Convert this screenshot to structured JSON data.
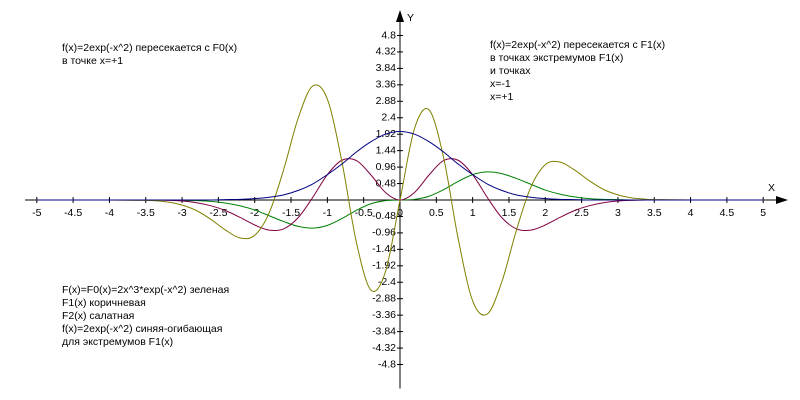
{
  "chart_data": {
    "type": "line",
    "x_label": "X",
    "y_label": "Y",
    "annotations": [
      [
        "f(x)=2exp(-x^2) пересекается с F0(x)",
        "в точке x=+1"
      ],
      [
        "f(x)=2exp(-x^2) пересекается с F1(x)",
        "в точках экстремумов F1(x)",
        "и точках",
        "x=-1",
        "x=+1"
      ],
      [
        "F(x)=F0(x)=2x^3*exp(-x^2)  зеленая",
        "F1(x)  коричневая",
        "F2(x)  салатная",
        "f(x)=2exp(-x^2)  синяя-огибающая",
        "для экстремумов F1(x)"
      ]
    ],
    "xlim": [
      -5.3,
      5.3
    ],
    "ylim": [
      -5.5,
      5.5
    ],
    "xticks": [
      -5,
      -4.5,
      -4,
      -3.5,
      -3,
      -2.5,
      -2,
      -1.5,
      -1,
      -0.5,
      0,
      0.5,
      1,
      1.5,
      2,
      2.5,
      3,
      3.5,
      4,
      4.5,
      5
    ],
    "yticks": [
      -4.8,
      -4.32,
      -3.84,
      -3.36,
      -2.88,
      -2.4,
      -1.92,
      -1.44,
      -0.96,
      -0.48,
      0.48,
      0.96,
      1.44,
      1.92,
      2.4,
      2.88,
      3.36,
      3.84,
      4.32,
      4.8
    ],
    "x": [
      -5,
      -4.5,
      -4,
      -3.6,
      -3.4,
      -3.2,
      -3,
      -2.8,
      -2.6,
      -2.4,
      -2.2,
      -2,
      -1.8,
      -1.6,
      -1.4,
      -1.2,
      -1,
      -0.8,
      -0.6,
      -0.4,
      -0.2,
      0,
      0.2,
      0.4,
      0.6,
      0.8,
      1,
      1.2,
      1.4,
      1.6,
      1.8,
      2,
      2.2,
      2.4,
      2.6,
      2.8,
      3,
      3.2,
      3.4,
      3.6,
      4,
      4.5,
      5
    ],
    "series": [
      {
        "color": "#008000",
        "values": [
          0,
          0,
          0,
          0,
          0,
          0,
          -0.01,
          -0.02,
          -0.04,
          -0.09,
          -0.17,
          -0.29,
          -0.46,
          -0.63,
          -0.77,
          -0.82,
          -0.74,
          -0.54,
          -0.3,
          -0.11,
          -0.02,
          0,
          0.02,
          0.11,
          0.3,
          0.54,
          0.74,
          0.82,
          0.77,
          0.63,
          0.46,
          0.29,
          0.17,
          0.09,
          0.04,
          0.02,
          0.01,
          0,
          0,
          0,
          0,
          0,
          0
        ]
      },
      {
        "color": "#800040",
        "values": [
          0,
          0,
          0,
          0,
          0,
          -0.01,
          -0.03,
          -0.08,
          -0.17,
          -0.31,
          -0.51,
          -0.73,
          -0.88,
          -0.84,
          -0.51,
          0.08,
          0.74,
          1.16,
          1.15,
          0.73,
          0.22,
          0,
          0.22,
          0.73,
          1.15,
          1.16,
          0.74,
          0.08,
          -0.51,
          -0.84,
          -0.88,
          -0.73,
          -0.51,
          -0.31,
          -0.17,
          -0.08,
          -0.03,
          -0.01,
          0,
          0,
          0,
          0,
          0
        ]
      },
      {
        "color": "#808000",
        "values": [
          0,
          0,
          0,
          -0.01,
          -0.02,
          -0.06,
          -0.15,
          -0.31,
          -0.57,
          -0.88,
          -1.11,
          -1.03,
          -0.37,
          0.9,
          2.4,
          3.33,
          2.94,
          1.12,
          -1.24,
          -2.63,
          -2.09,
          0,
          2.09,
          2.63,
          1.24,
          -1.12,
          -2.94,
          -3.33,
          -2.4,
          -0.9,
          0.37,
          1.03,
          1.11,
          0.88,
          0.57,
          0.31,
          0.15,
          0.06,
          0.02,
          0.01,
          0,
          0,
          0
        ]
      },
      {
        "color": "#000080",
        "values": [
          0,
          0,
          0,
          0,
          0,
          0,
          0,
          0,
          0,
          0.01,
          0.02,
          0.04,
          0.08,
          0.15,
          0.28,
          0.47,
          0.74,
          1.05,
          1.4,
          1.7,
          1.92,
          2,
          1.92,
          1.7,
          1.4,
          1.05,
          0.74,
          0.47,
          0.28,
          0.15,
          0.08,
          0.04,
          0.02,
          0.01,
          0,
          0,
          0,
          0,
          0,
          0,
          0,
          0,
          0
        ]
      }
    ]
  }
}
